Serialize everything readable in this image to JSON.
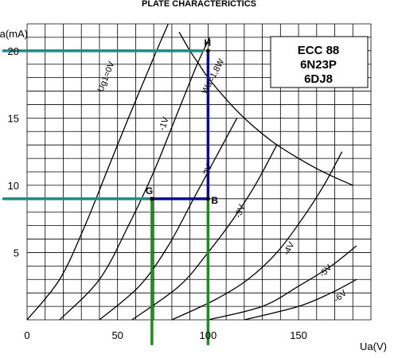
{
  "chart_data": {
    "type": "line",
    "title": "PLATE CHARACTERICTICS",
    "xlabel": "Ua(V)",
    "ylabel": "Ia(mA)",
    "xlim": [
      0,
      190
    ],
    "ylim": [
      0,
      22
    ],
    "x_ticks": [
      0,
      50,
      100,
      150
    ],
    "x_tick_labels": [
      "0",
      "50",
      "100",
      "150"
    ],
    "y_ticks": [
      5,
      10,
      15,
      20
    ],
    "y_tick_labels": [
      "5",
      "10",
      "15",
      "20"
    ],
    "grid": true,
    "tube_types": [
      "ECC 88",
      "6N23P",
      "6DJ8"
    ],
    "series": [
      {
        "name": "Ug1=0V",
        "points": [
          [
            0,
            0
          ],
          [
            18,
            3
          ],
          [
            32,
            7
          ],
          [
            44,
            11
          ],
          [
            56,
            15
          ],
          [
            70,
            19.5
          ],
          [
            78,
            22
          ]
        ]
      },
      {
        "name": "-1V",
        "points": [
          [
            18,
            0
          ],
          [
            40,
            3
          ],
          [
            56,
            7
          ],
          [
            70,
            11
          ],
          [
            82,
            15
          ],
          [
            94,
            19
          ],
          [
            101,
            21
          ]
        ]
      },
      {
        "name": "-2V",
        "points": [
          [
            40,
            0
          ],
          [
            62,
            2.5
          ],
          [
            78,
            5.5
          ],
          [
            92,
            9
          ],
          [
            104,
            12
          ],
          [
            116,
            15
          ]
        ]
      },
      {
        "name": "-3V",
        "points": [
          [
            58,
            0
          ],
          [
            84,
            2.5
          ],
          [
            100,
            5
          ],
          [
            114,
            7.5
          ],
          [
            126,
            10
          ],
          [
            138,
            13
          ]
        ]
      },
      {
        "name": "-4V",
        "points": [
          [
            80,
            0
          ],
          [
            104,
            1.5
          ],
          [
            122,
            3
          ],
          [
            138,
            5
          ],
          [
            152,
            7.5
          ],
          [
            164,
            10
          ],
          [
            174,
            12.5
          ]
        ]
      },
      {
        "name": "-5V",
        "points": [
          [
            100,
            0
          ],
          [
            130,
            1
          ],
          [
            150,
            2.5
          ],
          [
            168,
            4
          ],
          [
            182,
            5.5
          ]
        ]
      },
      {
        "name": "-6V",
        "points": [
          [
            120,
            0
          ],
          [
            150,
            1
          ],
          [
            168,
            2
          ],
          [
            182,
            3
          ]
        ]
      },
      {
        "name": "Wa=1,8W",
        "points": [
          [
            84,
            21.4
          ],
          [
            90,
            20
          ],
          [
            95,
            19
          ],
          [
            100,
            18
          ],
          [
            110,
            16.4
          ],
          [
            120,
            15
          ],
          [
            135,
            13.3
          ],
          [
            150,
            12
          ],
          [
            165,
            10.9
          ],
          [
            180,
            10
          ]
        ]
      }
    ],
    "annotation_points": [
      {
        "label": "H",
        "x": 100,
        "y": 20
      },
      {
        "label": "G",
        "x": 69,
        "y": 9
      },
      {
        "label": "B",
        "x": 100,
        "y": 9
      }
    ],
    "reference_lines": [
      {
        "kind": "horizontal",
        "y": 20,
        "x_start": -13,
        "x_end": 97,
        "color": "#1e8a83"
      },
      {
        "kind": "horizontal",
        "y": 9,
        "x_start": -13,
        "x_end": 70,
        "color": "#1e8a83"
      },
      {
        "kind": "vertical",
        "x": 69,
        "y_start": -1.8,
        "y_end": 9,
        "color": "#1f8a1f"
      },
      {
        "kind": "vertical",
        "x": 100,
        "y_start": -1.8,
        "y_end": 9,
        "color": "#1f8a1f"
      },
      {
        "kind": "horizontal",
        "y": 9,
        "x_start": 69,
        "x_end": 100,
        "color": "#0a0a8c"
      },
      {
        "kind": "vertical",
        "x": 100,
        "y_start": 9,
        "y_end": 20,
        "color": "#0a0a8c"
      }
    ],
    "colors": {
      "grid": "#000000",
      "curves": "#000000",
      "teal": "#1e8a83",
      "green": "#1f8a1f",
      "navy": "#0a0a8c"
    }
  }
}
